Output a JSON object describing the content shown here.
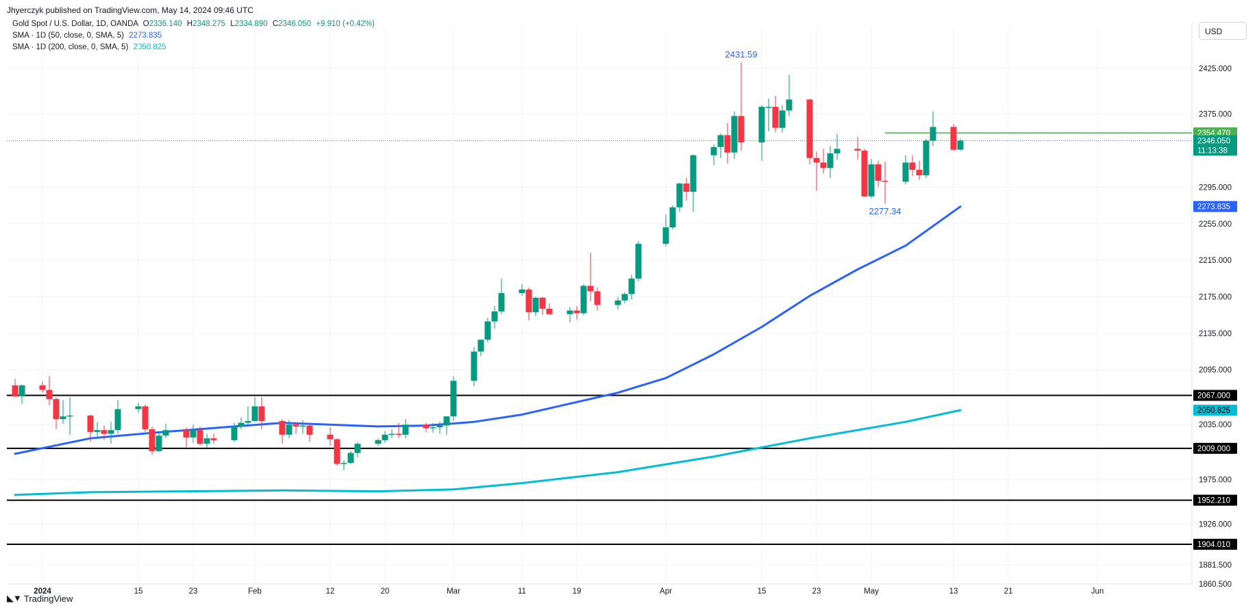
{
  "publisher_line": "Jhyerczyk published on TradingView.com, May 14, 2024 09:46 UTC",
  "legend": {
    "symbol": "Gold Spot / U.S. Dollar, 1D, OANDA",
    "open_label": "O",
    "open": "2336.140",
    "high_label": "H",
    "high": "2348.275",
    "low_label": "L",
    "low": "2334.890",
    "close_label": "C",
    "close": "2346.050",
    "change": "+9.910 (+0.42%)",
    "sma50_label": "SMA · 1D (50, close, 0, SMA, 5)",
    "sma50_value": "2273.835",
    "sma200_label": "SMA · 1D (200, close, 0, SMA, 5)",
    "sma200_value": "2050.825"
  },
  "currency_button": "USD",
  "brand": "TradingView",
  "colors": {
    "up": "#089981",
    "down": "#f23645",
    "sma50": "#2962ff",
    "sma200": "#00bcd4",
    "hline": "#000000",
    "target": "#4caf50",
    "price_tag": "#089981",
    "grid": "#f0f3fa"
  },
  "chart_data": {
    "type": "candlestick",
    "ylim": [
      1860.5,
      2470
    ],
    "y_ticks": [
      "2425.000",
      "2375.000",
      "2295.000",
      "2255.000",
      "2215.000",
      "2175.000",
      "2135.000",
      "2095.000",
      "2035.000",
      "1975.000",
      "1926.000",
      "1881.500",
      "1860.500"
    ],
    "x_ticks": [
      {
        "label": "2024",
        "bold": true,
        "date": "2024-01-01"
      },
      {
        "label": "15",
        "date": "2024-01-15"
      },
      {
        "label": "23",
        "date": "2024-01-23"
      },
      {
        "label": "Feb",
        "date": "2024-02-01"
      },
      {
        "label": "12",
        "date": "2024-02-12"
      },
      {
        "label": "20",
        "date": "2024-02-20"
      },
      {
        "label": "Mar",
        "date": "2024-03-01"
      },
      {
        "label": "11",
        "date": "2024-03-11"
      },
      {
        "label": "19",
        "date": "2024-03-19"
      },
      {
        "label": "Apr",
        "date": "2024-04-01"
      },
      {
        "label": "15",
        "date": "2024-04-15"
      },
      {
        "label": "23",
        "date": "2024-04-23"
      },
      {
        "label": "May",
        "date": "2024-05-01"
      },
      {
        "label": "13",
        "date": "2024-05-13"
      },
      {
        "label": "21",
        "date": "2024-05-21"
      },
      {
        "label": "Jun",
        "date": "2024-06-03"
      }
    ],
    "candles": [
      {
        "date": "2023-12-28",
        "o": 2078,
        "h": 2085,
        "l": 2065,
        "c": 2066
      },
      {
        "date": "2023-12-29",
        "o": 2066,
        "h": 2079,
        "l": 2058,
        "c": 2078
      },
      {
        "date": "2024-01-01",
        "o": 2078,
        "h": 2082,
        "l": 2070,
        "c": 2073
      },
      {
        "date": "2024-01-02",
        "o": 2073,
        "h": 2088,
        "l": 2056,
        "c": 2063
      },
      {
        "date": "2024-01-03",
        "o": 2063,
        "h": 2065,
        "l": 2030,
        "c": 2041
      },
      {
        "date": "2024-01-04",
        "o": 2041,
        "h": 2062,
        "l": 2036,
        "c": 2044
      },
      {
        "date": "2024-01-05",
        "o": 2044,
        "h": 2065,
        "l": 2024,
        "c": 2045
      },
      {
        "date": "2024-01-08",
        "o": 2045,
        "h": 2046,
        "l": 2016,
        "c": 2027
      },
      {
        "date": "2024-01-09",
        "o": 2027,
        "h": 2038,
        "l": 2022,
        "c": 2029
      },
      {
        "date": "2024-01-10",
        "o": 2029,
        "h": 2034,
        "l": 2018,
        "c": 2025
      },
      {
        "date": "2024-01-11",
        "o": 2025,
        "h": 2038,
        "l": 2014,
        "c": 2029
      },
      {
        "date": "2024-01-12",
        "o": 2029,
        "h": 2062,
        "l": 2025,
        "c": 2052
      },
      {
        "date": "2024-01-15",
        "o": 2052,
        "h": 2059,
        "l": 2048,
        "c": 2055
      },
      {
        "date": "2024-01-16",
        "o": 2055,
        "h": 2057,
        "l": 2027,
        "c": 2030
      },
      {
        "date": "2024-01-17",
        "o": 2030,
        "h": 2033,
        "l": 2002,
        "c": 2006
      },
      {
        "date": "2024-01-18",
        "o": 2006,
        "h": 2028,
        "l": 2005,
        "c": 2023
      },
      {
        "date": "2024-01-19",
        "o": 2023,
        "h": 2036,
        "l": 2020,
        "c": 2029
      },
      {
        "date": "2024-01-22",
        "o": 2029,
        "h": 2032,
        "l": 2010,
        "c": 2021
      },
      {
        "date": "2024-01-23",
        "o": 2021,
        "h": 2035,
        "l": 2015,
        "c": 2029
      },
      {
        "date": "2024-01-24",
        "o": 2029,
        "h": 2033,
        "l": 2012,
        "c": 2014
      },
      {
        "date": "2024-01-25",
        "o": 2014,
        "h": 2025,
        "l": 2010,
        "c": 2020
      },
      {
        "date": "2024-01-26",
        "o": 2020,
        "h": 2025,
        "l": 2014,
        "c": 2018
      },
      {
        "date": "2024-01-29",
        "o": 2018,
        "h": 2037,
        "l": 2016,
        "c": 2033
      },
      {
        "date": "2024-01-30",
        "o": 2033,
        "h": 2043,
        "l": 2030,
        "c": 2037
      },
      {
        "date": "2024-01-31",
        "o": 2037,
        "h": 2055,
        "l": 2035,
        "c": 2039
      },
      {
        "date": "2024-02-01",
        "o": 2039,
        "h": 2065,
        "l": 2038,
        "c": 2055
      },
      {
        "date": "2024-02-02",
        "o": 2055,
        "h": 2065,
        "l": 2030,
        "c": 2039
      },
      {
        "date": "2024-02-05",
        "o": 2039,
        "h": 2041,
        "l": 2014,
        "c": 2024
      },
      {
        "date": "2024-02-06",
        "o": 2024,
        "h": 2040,
        "l": 2020,
        "c": 2035
      },
      {
        "date": "2024-02-07",
        "o": 2035,
        "h": 2038,
        "l": 2025,
        "c": 2033
      },
      {
        "date": "2024-02-08",
        "o": 2033,
        "h": 2040,
        "l": 2025,
        "c": 2034
      },
      {
        "date": "2024-02-09",
        "o": 2034,
        "h": 2036,
        "l": 2016,
        "c": 2024
      },
      {
        "date": "2024-02-12",
        "o": 2024,
        "h": 2032,
        "l": 2012,
        "c": 2019
      },
      {
        "date": "2024-02-13",
        "o": 2019,
        "h": 2020,
        "l": 1990,
        "c": 1992
      },
      {
        "date": "2024-02-14",
        "o": 1992,
        "h": 1996,
        "l": 1985,
        "c": 1993
      },
      {
        "date": "2024-02-15",
        "o": 1993,
        "h": 2006,
        "l": 1992,
        "c": 2004
      },
      {
        "date": "2024-02-16",
        "o": 2004,
        "h": 2016,
        "l": 1999,
        "c": 2014
      },
      {
        "date": "2024-02-19",
        "o": 2014,
        "h": 2020,
        "l": 2012,
        "c": 2018
      },
      {
        "date": "2024-02-20",
        "o": 2018,
        "h": 2028,
        "l": 2015,
        "c": 2024
      },
      {
        "date": "2024-02-21",
        "o": 2024,
        "h": 2030,
        "l": 2020,
        "c": 2025
      },
      {
        "date": "2024-02-22",
        "o": 2025,
        "h": 2037,
        "l": 2020,
        "c": 2024
      },
      {
        "date": "2024-02-23",
        "o": 2024,
        "h": 2041,
        "l": 2020,
        "c": 2035
      },
      {
        "date": "2024-02-26",
        "o": 2035,
        "h": 2037,
        "l": 2027,
        "c": 2031
      },
      {
        "date": "2024-02-27",
        "o": 2031,
        "h": 2037,
        "l": 2026,
        "c": 2032
      },
      {
        "date": "2024-02-28",
        "o": 2032,
        "h": 2038,
        "l": 2025,
        "c": 2034
      },
      {
        "date": "2024-02-29",
        "o": 2034,
        "h": 2044,
        "l": 2024,
        "c": 2044
      },
      {
        "date": "2024-03-01",
        "o": 2044,
        "h": 2088,
        "l": 2039,
        "c": 2083
      },
      {
        "date": "2024-03-04",
        "o": 2083,
        "h": 2120,
        "l": 2077,
        "c": 2115
      },
      {
        "date": "2024-03-05",
        "o": 2115,
        "h": 2125,
        "l": 2110,
        "c": 2128
      },
      {
        "date": "2024-03-06",
        "o": 2128,
        "h": 2152,
        "l": 2125,
        "c": 2148
      },
      {
        "date": "2024-03-07",
        "o": 2148,
        "h": 2165,
        "l": 2140,
        "c": 2159
      },
      {
        "date": "2024-03-08",
        "o": 2159,
        "h": 2195,
        "l": 2156,
        "c": 2179
      },
      {
        "date": "2024-03-11",
        "o": 2179,
        "h": 2189,
        "l": 2176,
        "c": 2183
      },
      {
        "date": "2024-03-12",
        "o": 2183,
        "h": 2185,
        "l": 2149,
        "c": 2158
      },
      {
        "date": "2024-03-13",
        "o": 2158,
        "h": 2175,
        "l": 2154,
        "c": 2174
      },
      {
        "date": "2024-03-14",
        "o": 2174,
        "h": 2175,
        "l": 2155,
        "c": 2162
      },
      {
        "date": "2024-03-15",
        "o": 2162,
        "h": 2168,
        "l": 2155,
        "c": 2156
      },
      {
        "date": "2024-03-18",
        "o": 2156,
        "h": 2164,
        "l": 2147,
        "c": 2160
      },
      {
        "date": "2024-03-19",
        "o": 2160,
        "h": 2165,
        "l": 2150,
        "c": 2157
      },
      {
        "date": "2024-03-20",
        "o": 2157,
        "h": 2189,
        "l": 2155,
        "c": 2187
      },
      {
        "date": "2024-03-21",
        "o": 2187,
        "h": 2223,
        "l": 2170,
        "c": 2181
      },
      {
        "date": "2024-03-22",
        "o": 2181,
        "h": 2185,
        "l": 2160,
        "c": 2166
      },
      {
        "date": "2024-03-25",
        "o": 2166,
        "h": 2175,
        "l": 2161,
        "c": 2171
      },
      {
        "date": "2024-03-26",
        "o": 2171,
        "h": 2180,
        "l": 2168,
        "c": 2178
      },
      {
        "date": "2024-03-27",
        "o": 2178,
        "h": 2199,
        "l": 2172,
        "c": 2195
      },
      {
        "date": "2024-03-28",
        "o": 2195,
        "h": 2236,
        "l": 2192,
        "c": 2233
      },
      {
        "date": "2024-04-01",
        "o": 2233,
        "h": 2265,
        "l": 2230,
        "c": 2251
      },
      {
        "date": "2024-04-02",
        "o": 2251,
        "h": 2275,
        "l": 2249,
        "c": 2273
      },
      {
        "date": "2024-04-03",
        "o": 2273,
        "h": 2300,
        "l": 2268,
        "c": 2299
      },
      {
        "date": "2024-04-04",
        "o": 2299,
        "h": 2305,
        "l": 2280,
        "c": 2290
      },
      {
        "date": "2024-04-05",
        "o": 2290,
        "h": 2331,
        "l": 2268,
        "c": 2330
      },
      {
        "date": "2024-04-08",
        "o": 2330,
        "h": 2342,
        "l": 2319,
        "c": 2339
      },
      {
        "date": "2024-04-09",
        "o": 2339,
        "h": 2354,
        "l": 2327,
        "c": 2352
      },
      {
        "date": "2024-04-10",
        "o": 2352,
        "h": 2365,
        "l": 2321,
        "c": 2333
      },
      {
        "date": "2024-04-11",
        "o": 2333,
        "h": 2378,
        "l": 2326,
        "c": 2373
      },
      {
        "date": "2024-04-12",
        "o": 2373,
        "h": 2431.59,
        "l": 2335,
        "c": 2344
      },
      {
        "date": "2024-04-15",
        "o": 2344,
        "h": 2385,
        "l": 2324,
        "c": 2383
      },
      {
        "date": "2024-04-16",
        "o": 2383,
        "h": 2392,
        "l": 2356,
        "c": 2383
      },
      {
        "date": "2024-04-17",
        "o": 2383,
        "h": 2395,
        "l": 2355,
        "c": 2360
      },
      {
        "date": "2024-04-18",
        "o": 2360,
        "h": 2385,
        "l": 2355,
        "c": 2379
      },
      {
        "date": "2024-04-19",
        "o": 2379,
        "h": 2418,
        "l": 2373,
        "c": 2391
      },
      {
        "date": "2024-04-22",
        "o": 2391,
        "h": 2392,
        "l": 2320,
        "c": 2327
      },
      {
        "date": "2024-04-23",
        "o": 2327,
        "h": 2334,
        "l": 2291,
        "c": 2322
      },
      {
        "date": "2024-04-24",
        "o": 2322,
        "h": 2337,
        "l": 2310,
        "c": 2316
      },
      {
        "date": "2024-04-25",
        "o": 2316,
        "h": 2340,
        "l": 2305,
        "c": 2332
      },
      {
        "date": "2024-04-26",
        "o": 2332,
        "h": 2353,
        "l": 2325,
        "c": 2337
      },
      {
        "date": "2024-04-29",
        "o": 2337,
        "h": 2350,
        "l": 2325,
        "c": 2335
      },
      {
        "date": "2024-04-30",
        "o": 2335,
        "h": 2337,
        "l": 2284,
        "c": 2285
      },
      {
        "date": "2024-05-01",
        "o": 2285,
        "h": 2326,
        "l": 2283,
        "c": 2320
      },
      {
        "date": "2024-05-02",
        "o": 2320,
        "h": 2324,
        "l": 2295,
        "c": 2302
      },
      {
        "date": "2024-05-03",
        "o": 2302,
        "h": 2323,
        "l": 2277.34,
        "c": 2301
      },
      {
        "date": "2024-05-06",
        "o": 2301,
        "h": 2330,
        "l": 2298,
        "c": 2322
      },
      {
        "date": "2024-05-07",
        "o": 2322,
        "h": 2330,
        "l": 2307,
        "c": 2314
      },
      {
        "date": "2024-05-08",
        "o": 2314,
        "h": 2324,
        "l": 2303,
        "c": 2308
      },
      {
        "date": "2024-05-09",
        "o": 2308,
        "h": 2348,
        "l": 2305,
        "c": 2346
      },
      {
        "date": "2024-05-10",
        "o": 2346,
        "h": 2378,
        "l": 2340,
        "c": 2361
      },
      {
        "date": "2024-05-13",
        "o": 2361,
        "h": 2364,
        "l": 2335,
        "c": 2336
      },
      {
        "date": "2024-05-14",
        "o": 2336.14,
        "h": 2348.275,
        "l": 2334.89,
        "c": 2346.05
      }
    ],
    "sma50": {
      "name": "SMA · 1D (50, close, 0, SMA, 5)",
      "points": [
        {
          "date": "2023-12-28",
          "v": 2003
        },
        {
          "date": "2024-01-08",
          "v": 2020
        },
        {
          "date": "2024-01-17",
          "v": 2026
        },
        {
          "date": "2024-01-29",
          "v": 2033
        },
        {
          "date": "2024-02-05",
          "v": 2037
        },
        {
          "date": "2024-02-12",
          "v": 2035
        },
        {
          "date": "2024-02-19",
          "v": 2033
        },
        {
          "date": "2024-02-26",
          "v": 2034
        },
        {
          "date": "2024-03-04",
          "v": 2038
        },
        {
          "date": "2024-03-11",
          "v": 2046
        },
        {
          "date": "2024-03-18",
          "v": 2058
        },
        {
          "date": "2024-03-25",
          "v": 2070
        },
        {
          "date": "2024-04-01",
          "v": 2086
        },
        {
          "date": "2024-04-08",
          "v": 2112
        },
        {
          "date": "2024-04-15",
          "v": 2142
        },
        {
          "date": "2024-04-22",
          "v": 2176
        },
        {
          "date": "2024-04-29",
          "v": 2205
        },
        {
          "date": "2024-05-06",
          "v": 2231
        },
        {
          "date": "2024-05-14",
          "v": 2273.835
        }
      ]
    },
    "sma200": {
      "name": "SMA · 1D (200, close, 0, SMA, 5)",
      "points": [
        {
          "date": "2023-12-28",
          "v": 1958
        },
        {
          "date": "2024-01-08",
          "v": 1961
        },
        {
          "date": "2024-01-22",
          "v": 1962
        },
        {
          "date": "2024-02-05",
          "v": 1963
        },
        {
          "date": "2024-02-19",
          "v": 1962
        },
        {
          "date": "2024-03-01",
          "v": 1964
        },
        {
          "date": "2024-03-11",
          "v": 1971
        },
        {
          "date": "2024-03-25",
          "v": 1983
        },
        {
          "date": "2024-04-08",
          "v": 2000
        },
        {
          "date": "2024-04-22",
          "v": 2020
        },
        {
          "date": "2024-05-06",
          "v": 2038
        },
        {
          "date": "2024-05-14",
          "v": 2050.825
        }
      ]
    },
    "horizontal_levels": [
      "2067.000",
      "2009.000",
      "1952.210",
      "1904.010"
    ],
    "target_line": {
      "value": "2354.470",
      "start_date": "2024-05-03"
    },
    "last_price": {
      "value": "2346.050",
      "countdown": "11:13:38"
    },
    "annotations": [
      {
        "text": "2431.59",
        "date": "2024-04-12",
        "value": 2431.59,
        "pos": "above"
      },
      {
        "text": "2277.34",
        "date": "2024-05-03",
        "value": 2277.34,
        "pos": "below"
      }
    ]
  }
}
